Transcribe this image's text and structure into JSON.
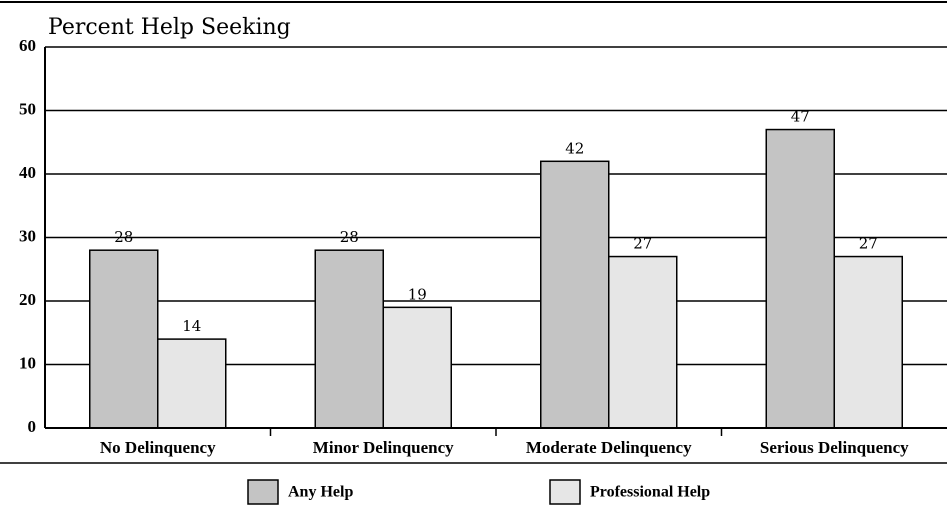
{
  "chart_data": {
    "type": "bar",
    "title": "Percent Help Seeking",
    "categories": [
      "No Delinquency",
      "Minor Delinquency",
      "Moderate Delinquency",
      "Serious Delinquency"
    ],
    "series": [
      {
        "name": "Any Help",
        "color": "#c4c4c4",
        "values": [
          28,
          28,
          42,
          47
        ]
      },
      {
        "name": "Professional Help",
        "color": "#e6e6e6",
        "values": [
          14,
          19,
          27,
          27
        ]
      }
    ],
    "ylim": [
      0,
      60
    ],
    "yticks": [
      0,
      10,
      20,
      30,
      40,
      50,
      60
    ],
    "grid": true
  }
}
